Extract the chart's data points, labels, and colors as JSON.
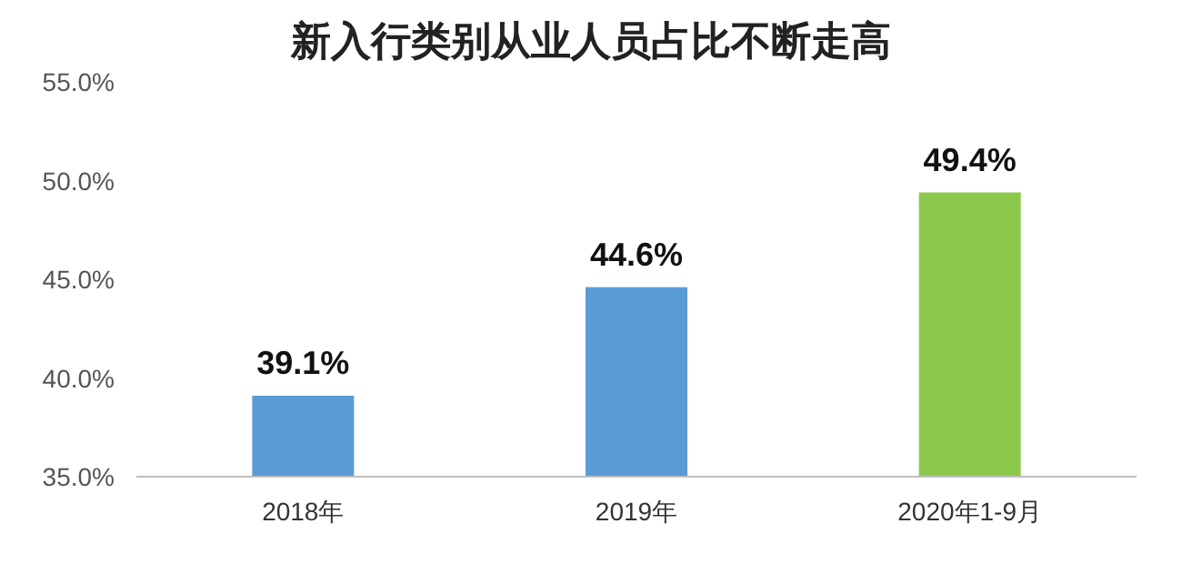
{
  "chart_data": {
    "type": "bar",
    "title": "新入行类别从业人员占比不断走高",
    "categories": [
      "2018年",
      "2019年",
      "2020年1-9月"
    ],
    "values": [
      39.1,
      44.6,
      49.4
    ],
    "colors": [
      "#5b9bd5",
      "#5b9bd5",
      "#8cc84b"
    ],
    "value_labels": [
      "39.1%",
      "44.6%",
      "49.4%"
    ],
    "ylim": [
      35,
      55
    ],
    "yticks": [
      {
        "value": 35,
        "label": "35.0%"
      },
      {
        "value": 40,
        "label": "40.0%"
      },
      {
        "value": 45,
        "label": "45.0%"
      },
      {
        "value": 50,
        "label": "50.0%"
      },
      {
        "value": 55,
        "label": "55.0%"
      }
    ],
    "grid": false
  }
}
